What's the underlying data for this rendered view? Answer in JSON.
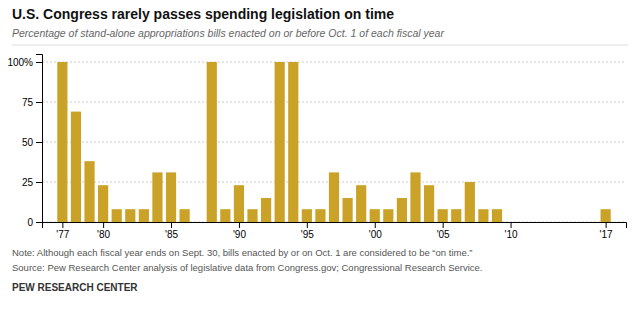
{
  "chart_data": {
    "type": "bar",
    "title": "U.S. Congress rarely passes spending legislation on time",
    "subtitle": "Percentage of stand-alone appropriations bills enacted on or before Oct. 1 of each fiscal year",
    "annotations": [
      "Note: Although each fiscal year ends on Sept. 30, bills enacted by or on Oct. 1 are considered to be “on time.”",
      "Source: Pew Research Center analysis of legislative data from Congress.gov; Congressional Research Service.",
      "PEW RESEARCH CENTER"
    ],
    "x": [
      1977,
      1978,
      1979,
      1980,
      1981,
      1982,
      1983,
      1984,
      1985,
      1986,
      1987,
      1988,
      1989,
      1990,
      1991,
      1992,
      1993,
      1994,
      1995,
      1996,
      1997,
      1998,
      1999,
      2000,
      2001,
      2002,
      2003,
      2004,
      2005,
      2006,
      2007,
      2008,
      2009,
      2010,
      2017
    ],
    "values": [
      100,
      69,
      38,
      23,
      8,
      8,
      8,
      31,
      31,
      8,
      0,
      100,
      8,
      23,
      8,
      15,
      100,
      100,
      8,
      8,
      31,
      15,
      23,
      8,
      8,
      15,
      31,
      23,
      8,
      8,
      25,
      8,
      8,
      0,
      8
    ],
    "color": "#C9A227",
    "xlim": [
      1975.5,
      2018.5
    ],
    "xticks": [
      {
        "value": 1977,
        "label": "'77"
      },
      {
        "value": 1980,
        "label": "'80"
      },
      {
        "value": 1985,
        "label": "'85"
      },
      {
        "value": 1990,
        "label": "'90"
      },
      {
        "value": 1995,
        "label": "'95"
      },
      {
        "value": 2000,
        "label": "'00"
      },
      {
        "value": 2005,
        "label": "'05"
      },
      {
        "value": 2010,
        "label": "'10"
      },
      {
        "value": 2017,
        "label": "'17"
      }
    ],
    "ylim": [
      0,
      105
    ],
    "yticks": [
      0,
      25,
      50,
      75,
      {
        "value": 100,
        "label": "100%"
      }
    ],
    "grid": true
  }
}
